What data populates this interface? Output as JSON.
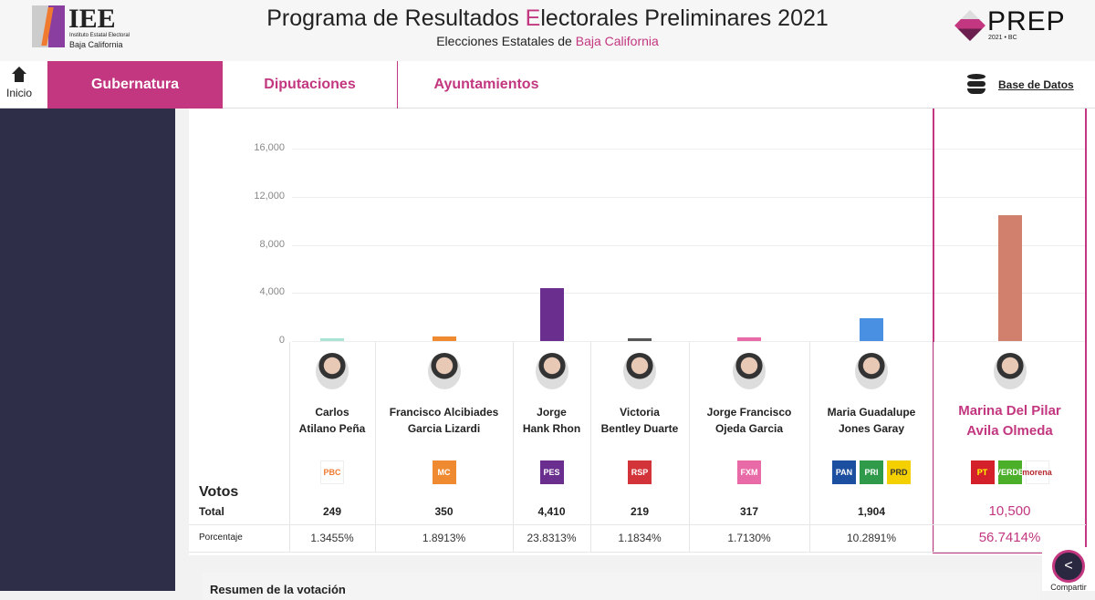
{
  "header": {
    "logo_text": "IEE",
    "logo_sub1": "Instituto Estatal Electoral",
    "logo_sub2": "Baja California",
    "title_pre": "Programa de Resultados ",
    "title_E": "E",
    "title_post": "lectorales Preliminares 2021",
    "subtitle_pre": "Elecciones Estatales de ",
    "subtitle_place": "Baja California",
    "prep_logo": "PREP",
    "prep_sub": "2021 • BC"
  },
  "nav": {
    "home_label": "Inicio",
    "tabs": [
      {
        "label": "Gubernatura",
        "active": true
      },
      {
        "label": "Diputaciones"
      },
      {
        "label": "Ayuntamientos"
      }
    ],
    "db_label": "Base de Datos"
  },
  "chart_data": {
    "type": "bar",
    "ylim": [
      0,
      16000
    ],
    "yticks": [
      "0",
      "4,000",
      "8,000",
      "12,000",
      "16,000"
    ],
    "categories": [
      "Carlos Atilano Peña",
      "Francisco Alcibiades Garcia Lizardi",
      "Jorge Hank Rhon",
      "Victoria Bentley Duarte",
      "Jorge Francisco Ojeda Garcia",
      "Maria Guadalupe Jones Garay",
      "Marina Del Pilar Avila Olmeda"
    ],
    "values": [
      249,
      350,
      4410,
      219,
      317,
      1904,
      10500
    ],
    "colors": [
      "#a9e3d3",
      "#f08a30",
      "#6a2f8e",
      "#555555",
      "#e86aa6",
      "#4a90e2",
      "#d0806c"
    ]
  },
  "table": {
    "votos_label": "Votos",
    "total_label": "Total",
    "pct_label": "Porcentaje",
    "candidates": [
      {
        "name1": "Carlos",
        "name2": "Atilano Peña",
        "parties": [
          "PBC"
        ],
        "total": "249",
        "pct": "1.3455%"
      },
      {
        "name1": "Francisco Alcibiades",
        "name2": "Garcia Lizardi",
        "parties": [
          "MC"
        ],
        "total": "350",
        "pct": "1.8913%"
      },
      {
        "name1": "Jorge",
        "name2": "Hank Rhon",
        "parties": [
          "PES"
        ],
        "total": "4,410",
        "pct": "23.8313%"
      },
      {
        "name1": "Victoria",
        "name2": "Bentley Duarte",
        "parties": [
          "RSP"
        ],
        "total": "219",
        "pct": "1.1834%"
      },
      {
        "name1": "Jorge Francisco",
        "name2": "Ojeda Garcia",
        "parties": [
          "FXM"
        ],
        "total": "317",
        "pct": "1.7130%"
      },
      {
        "name1": "Maria Guadalupe",
        "name2": "Jones Garay",
        "parties": [
          "PAN",
          "PRI",
          "PRD"
        ],
        "total": "1,904",
        "pct": "10.2891%"
      },
      {
        "name1": "Marina Del Pilar",
        "name2": "Avila Olmeda",
        "parties": [
          "PT",
          "VERDE",
          "morena"
        ],
        "total": "10,500",
        "pct": "56.7414%",
        "highlight": true
      }
    ]
  },
  "summary_title": "Resumen de la votación",
  "share_label": "Compartir",
  "accent": "#c2377f"
}
